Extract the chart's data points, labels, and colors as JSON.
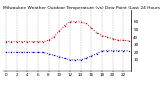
{
  "title": "Milwaukee Weather Outdoor Temperature (vs) Dew Point (Last 24 Hours)",
  "temp_x": [
    0,
    1,
    2,
    3,
    4,
    5,
    6,
    7,
    8,
    9,
    10,
    11,
    12,
    13,
    14,
    15,
    16,
    17,
    18,
    19,
    20,
    21,
    22,
    23
  ],
  "temp_y": [
    34,
    34,
    34,
    34,
    34,
    34,
    34,
    34,
    36,
    40,
    48,
    55,
    60,
    60,
    60,
    58,
    52,
    46,
    42,
    40,
    38,
    36,
    36,
    35
  ],
  "dew_x": [
    0,
    1,
    2,
    3,
    4,
    5,
    6,
    7,
    8,
    9,
    10,
    11,
    12,
    13,
    14,
    15,
    16,
    17,
    18,
    19,
    20,
    21,
    22,
    23
  ],
  "dew_y": [
    20,
    20,
    20,
    20,
    20,
    20,
    20,
    20,
    18,
    16,
    14,
    12,
    10,
    10,
    10,
    12,
    15,
    18,
    22,
    22,
    22,
    22,
    22,
    22
  ],
  "temp_color": "#cc0000",
  "dew_color": "#0000cc",
  "background_color": "#ffffff",
  "grid_color": "#888888",
  "ylim": [
    -5,
    75
  ],
  "xlim": [
    -0.5,
    23.5
  ],
  "ytick_values": [
    10,
    20,
    30,
    40,
    50,
    60
  ],
  "ytick_labels": [
    "10",
    "20",
    "30",
    "40",
    "50",
    "60"
  ],
  "xtick_positions": [
    0,
    2,
    4,
    6,
    8,
    10,
    12,
    14,
    16,
    18,
    20,
    22
  ],
  "xtick_labels": [
    "0",
    "2",
    "4",
    "6",
    "8",
    "10",
    "12",
    "14",
    "16",
    "18",
    "20",
    "22"
  ],
  "ylabel_fontsize": 3.0,
  "xlabel_fontsize": 3.0,
  "title_fontsize": 3.2,
  "markersize": 1.0,
  "linewidth": 0.7,
  "grid_linewidth": 0.3
}
